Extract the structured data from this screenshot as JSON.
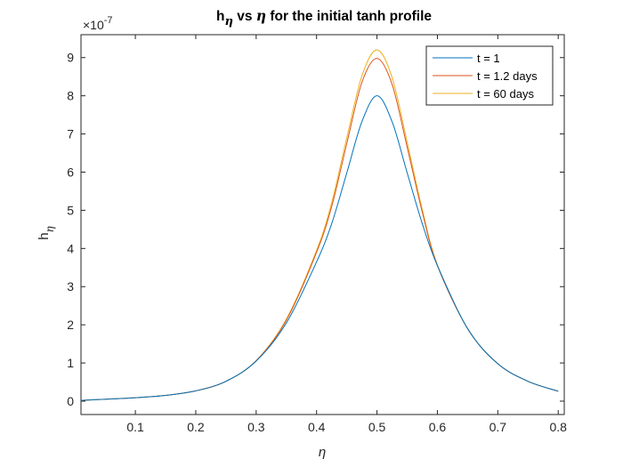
{
  "chart_data": {
    "type": "line",
    "title": {
      "part1": "h",
      "sub": "η",
      "part2": " vs ",
      "greek": "η",
      "part3": " for the initial tanh profile"
    },
    "xlabel": "η",
    "ylabel": {
      "main": "h",
      "sub": "η"
    },
    "y_exponent": {
      "base": "×10",
      "exp": "-7"
    },
    "xlim": [
      0.01,
      0.81
    ],
    "ylim": [
      -0.35,
      9.6
    ],
    "xticks": [
      0.1,
      0.2,
      0.3,
      0.4,
      0.5,
      0.6,
      0.7,
      0.8
    ],
    "xtick_labels": [
      "0.1",
      "0.2",
      "0.3",
      "0.4",
      "0.5",
      "0.6",
      "0.7",
      "0.8"
    ],
    "yticks": [
      0,
      1,
      2,
      3,
      4,
      5,
      6,
      7,
      8,
      9
    ],
    "ytick_labels": [
      "0",
      "1",
      "2",
      "3",
      "4",
      "5",
      "6",
      "7",
      "8",
      "9"
    ],
    "grid": false,
    "legend_position": "top-right",
    "x": [
      0.01,
      0.05,
      0.1,
      0.15,
      0.2,
      0.25,
      0.3,
      0.35,
      0.4,
      0.425,
      0.45,
      0.475,
      0.5,
      0.525,
      0.55,
      0.575,
      0.6,
      0.65,
      0.7,
      0.75,
      0.8
    ],
    "series": [
      {
        "name": "t = 1",
        "color": "#0072BD",
        "values": [
          0.02,
          0.05,
          0.09,
          0.15,
          0.27,
          0.52,
          1.05,
          2.05,
          3.65,
          4.65,
          5.98,
          7.32,
          8.0,
          7.32,
          5.98,
          4.65,
          3.55,
          1.9,
          0.98,
          0.52,
          0.26
        ]
      },
      {
        "name": "t = 1.2 days",
        "color": "#D95319",
        "values": [
          0.02,
          0.05,
          0.09,
          0.15,
          0.27,
          0.52,
          1.06,
          2.12,
          3.9,
          5.1,
          6.75,
          8.35,
          8.98,
          8.3,
          6.65,
          4.95,
          3.55,
          1.9,
          0.98,
          0.52,
          0.26
        ]
      },
      {
        "name": "t = 60 days",
        "color": "#EDB120",
        "values": [
          0.02,
          0.05,
          0.09,
          0.15,
          0.27,
          0.52,
          1.06,
          2.15,
          3.95,
          5.2,
          6.9,
          8.52,
          9.2,
          8.48,
          6.78,
          5.02,
          3.57,
          1.9,
          0.98,
          0.52,
          0.26
        ]
      }
    ]
  }
}
